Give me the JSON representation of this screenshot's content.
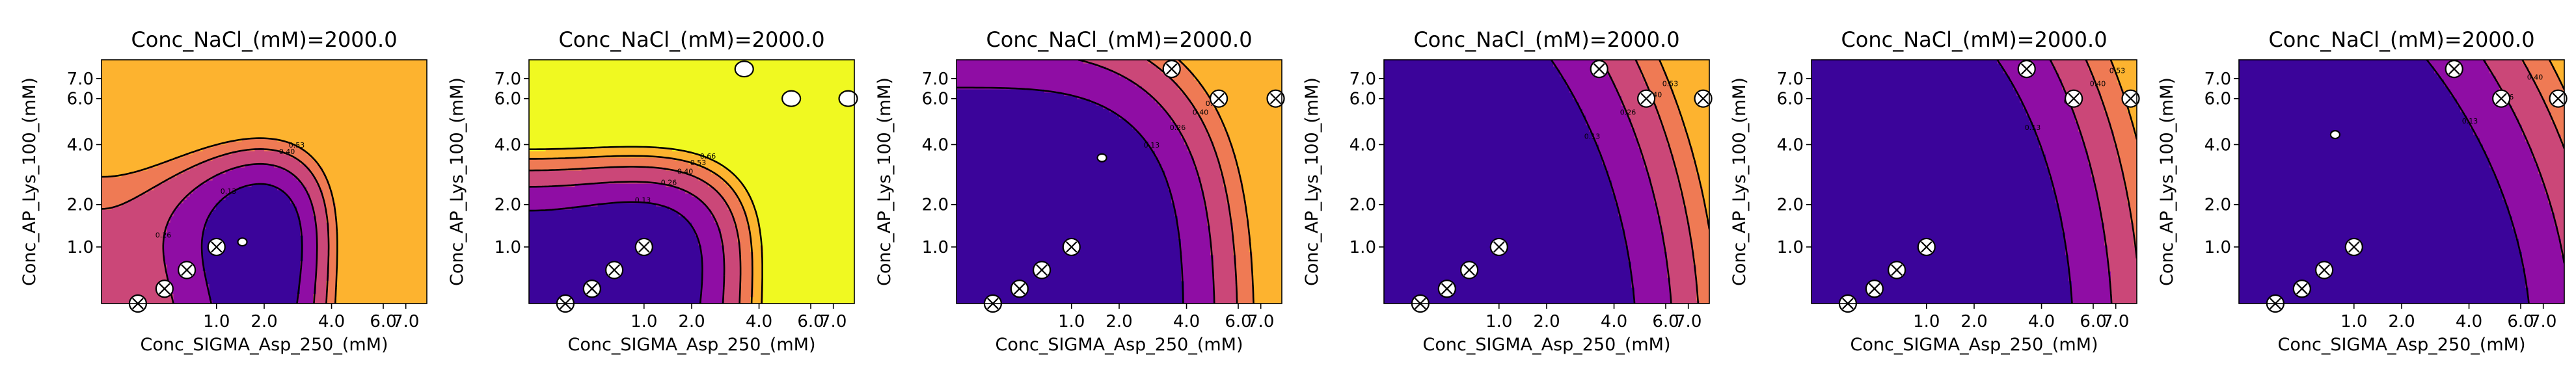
{
  "colors": {
    "plasma": [
      "#3b049a",
      "#8f0da4",
      "#cb4778",
      "#ef7a54",
      "#fdb32f",
      "#f0f921"
    ],
    "contour_line": "#000000",
    "marker_face": "#ffffff",
    "marker_edge": "#000000"
  },
  "chart_data": [
    {
      "type": "contour",
      "title": "Conc_NaCl_(mM)=2000.0",
      "xlabel": "Conc_SIGMA_Asp_250_(mM)",
      "ylabel": "Conc_AP_Lys_100_(mM)",
      "x_scale": "sqrt",
      "y_scale": "sqrt",
      "xlim": [
        0,
        8
      ],
      "ylim": [
        0.2,
        8
      ],
      "x_ticks": [
        "1.0",
        "2.0",
        "4.0",
        "6.0",
        "7.0"
      ],
      "y_ticks": [
        "1.0",
        "2.0",
        "4.0",
        "6.0",
        "7.0"
      ],
      "contour_levels": [
        "0.13",
        "0.26",
        "0.40",
        "0.53"
      ],
      "surface": {
        "x0": 1.9,
        "y0": 1.0,
        "kx": 0.1,
        "ky": 0.05,
        "kxy": 0.0,
        "base": 0.0
      },
      "points": [
        {
          "x": 0.1,
          "y": 0.2,
          "marker": "x"
        },
        {
          "x": 0.3,
          "y": 0.35,
          "marker": "x"
        },
        {
          "x": 0.55,
          "y": 0.6,
          "marker": "x"
        },
        {
          "x": 1.0,
          "y": 1.0,
          "marker": "x"
        },
        {
          "x": 1.5,
          "y": 1.1,
          "marker": "o"
        }
      ]
    },
    {
      "type": "contour",
      "title": "Conc_NaCl_(mM)=2000.0",
      "xlabel": "Conc_SIGMA_Asp_250_(mM)",
      "ylabel": "Conc_AP_Lys_100_(mM)",
      "x_scale": "sqrt",
      "y_scale": "sqrt",
      "xlim": [
        0,
        8
      ],
      "ylim": [
        0.2,
        8
      ],
      "x_ticks": [
        "1.0",
        "2.0",
        "4.0",
        "6.0",
        "7.0"
      ],
      "y_ticks": [
        "1.0",
        "2.0",
        "4.0",
        "6.0",
        "7.0"
      ],
      "contour_levels": [
        "0.13",
        "0.26",
        "0.40",
        "0.53",
        "0.66"
      ],
      "surface": {
        "x0": 0.8,
        "y0": 0.6,
        "kx": 0.06,
        "ky": 0.06,
        "kxy": 0.0,
        "base": 0.0
      },
      "points": [
        {
          "x": 0.1,
          "y": 0.2,
          "marker": "x"
        },
        {
          "x": 0.3,
          "y": 0.35,
          "marker": "x"
        },
        {
          "x": 0.55,
          "y": 0.6,
          "marker": "x"
        },
        {
          "x": 1.0,
          "y": 1.0,
          "marker": "x"
        },
        {
          "x": 3.5,
          "y": 7.5,
          "marker": "o"
        },
        {
          "x": 5.2,
          "y": 6.0,
          "marker": "o"
        },
        {
          "x": 7.7,
          "y": 6.0,
          "marker": "o"
        }
      ]
    },
    {
      "type": "contour",
      "title": "Conc_NaCl_(mM)=2000.0",
      "xlabel": "Conc_SIGMA_Asp_250_(mM)",
      "ylabel": "Conc_AP_Lys_100_(mM)",
      "x_scale": "sqrt",
      "y_scale": "sqrt",
      "xlim": [
        0,
        8
      ],
      "ylim": [
        0.2,
        8
      ],
      "x_ticks": [
        "1.0",
        "2.0",
        "4.0",
        "6.0",
        "7.0"
      ],
      "y_ticks": [
        "1.0",
        "2.0",
        "4.0",
        "6.0",
        "7.0"
      ],
      "contour_levels": [
        "0.13",
        "0.26",
        "0.40",
        "0.53"
      ],
      "surface": {
        "x0": 1.0,
        "y0": 1.5,
        "kx": 0.018,
        "ky": 0.006,
        "kxy": 0.008,
        "base": 0.0
      },
      "points": [
        {
          "x": 0.1,
          "y": 0.2,
          "marker": "x"
        },
        {
          "x": 0.3,
          "y": 0.35,
          "marker": "x"
        },
        {
          "x": 0.55,
          "y": 0.6,
          "marker": "x"
        },
        {
          "x": 1.0,
          "y": 1.0,
          "marker": "x"
        },
        {
          "x": 3.5,
          "y": 7.5,
          "marker": "x"
        },
        {
          "x": 5.2,
          "y": 6.0,
          "marker": "x"
        },
        {
          "x": 7.7,
          "y": 6.0,
          "marker": "x"
        },
        {
          "x": 1.6,
          "y": 3.5,
          "marker": "o"
        }
      ]
    },
    {
      "type": "contour",
      "title": "Conc_NaCl_(mM)=2000.0",
      "xlabel": "Conc_SIGMA_Asp_250_(mM)",
      "ylabel": "Conc_AP_Lys_100_(mM)",
      "x_scale": "sqrt",
      "y_scale": "sqrt",
      "xlim": [
        0,
        8
      ],
      "ylim": [
        0.2,
        8
      ],
      "x_ticks": [
        "1.0",
        "2.0",
        "4.0",
        "6.0",
        "7.0"
      ],
      "y_ticks": [
        "1.0",
        "2.0",
        "4.0",
        "6.0",
        "7.0"
      ],
      "contour_levels": [
        "0.13",
        "0.26",
        "0.40",
        "0.53"
      ],
      "surface": {
        "x0": 0.5,
        "y0": 2.0,
        "kx": 0.01,
        "ky": 0.001,
        "kxy": 0.007,
        "base": 0.0
      },
      "points": [
        {
          "x": 0.1,
          "y": 0.2,
          "marker": "x"
        },
        {
          "x": 0.3,
          "y": 0.35,
          "marker": "x"
        },
        {
          "x": 0.55,
          "y": 0.6,
          "marker": "x"
        },
        {
          "x": 1.0,
          "y": 1.0,
          "marker": "x"
        },
        {
          "x": 3.5,
          "y": 7.5,
          "marker": "x"
        },
        {
          "x": 5.2,
          "y": 6.0,
          "marker": "x"
        },
        {
          "x": 7.7,
          "y": 6.0,
          "marker": "x"
        }
      ]
    },
    {
      "type": "contour",
      "title": "Conc_NaCl_(mM)=2000.0",
      "xlabel": "Conc_SIGMA_Asp_250_(mM)",
      "ylabel": "Conc_AP_Lys_100_(mM)",
      "x_scale": "sqrt",
      "y_scale": "sqrt",
      "xlim": [
        0,
        8
      ],
      "ylim": [
        0.2,
        8
      ],
      "x_ticks": [
        "1.0",
        "2.0",
        "4.0",
        "6.0",
        "7.0"
      ],
      "y_ticks": [
        "1.0",
        "2.0",
        "4.0",
        "6.0",
        "7.0"
      ],
      "contour_levels": [
        "0.13",
        "0.26",
        "0.40",
        "0.53"
      ],
      "surface": {
        "x0": 0.4,
        "y0": 2.5,
        "kx": 0.008,
        "ky": 0.001,
        "kxy": 0.005,
        "base": 0.0
      },
      "points": [
        {
          "x": 0.1,
          "y": 0.2,
          "marker": "x"
        },
        {
          "x": 0.3,
          "y": 0.35,
          "marker": "x"
        },
        {
          "x": 0.55,
          "y": 0.6,
          "marker": "x"
        },
        {
          "x": 1.0,
          "y": 1.0,
          "marker": "x"
        },
        {
          "x": 3.5,
          "y": 7.5,
          "marker": "x"
        },
        {
          "x": 5.2,
          "y": 6.0,
          "marker": "x"
        },
        {
          "x": 7.7,
          "y": 6.0,
          "marker": "x"
        }
      ]
    },
    {
      "type": "contour",
      "title": "Conc_NaCl_(mM)=2000.0",
      "xlabel": "Conc_SIGMA_Asp_250_(mM)",
      "ylabel": "Conc_AP_Lys_100_(mM)",
      "x_scale": "sqrt",
      "y_scale": "sqrt",
      "xlim": [
        0,
        8
      ],
      "ylim": [
        0.2,
        8
      ],
      "x_ticks": [
        "1.0",
        "2.0",
        "4.0",
        "6.0",
        "7.0"
      ],
      "y_ticks": [
        "1.0",
        "2.0",
        "4.0",
        "6.0",
        "7.0"
      ],
      "contour_levels": [
        "0.13",
        "0.26",
        "0.40",
        "0.53"
      ],
      "surface": {
        "x0": 0.5,
        "y0": 2.5,
        "kx": 0.006,
        "ky": 0.001,
        "kxy": 0.006,
        "base": 0.0
      },
      "points": [
        {
          "x": 0.1,
          "y": 0.2,
          "marker": "x"
        },
        {
          "x": 0.3,
          "y": 0.35,
          "marker": "x"
        },
        {
          "x": 0.55,
          "y": 0.6,
          "marker": "x"
        },
        {
          "x": 1.0,
          "y": 1.0,
          "marker": "x"
        },
        {
          "x": 3.5,
          "y": 7.5,
          "marker": "x"
        },
        {
          "x": 5.2,
          "y": 6.0,
          "marker": "x"
        },
        {
          "x": 7.7,
          "y": 6.0,
          "marker": "x"
        },
        {
          "x": 0.7,
          "y": 4.4,
          "marker": "o"
        }
      ]
    }
  ]
}
